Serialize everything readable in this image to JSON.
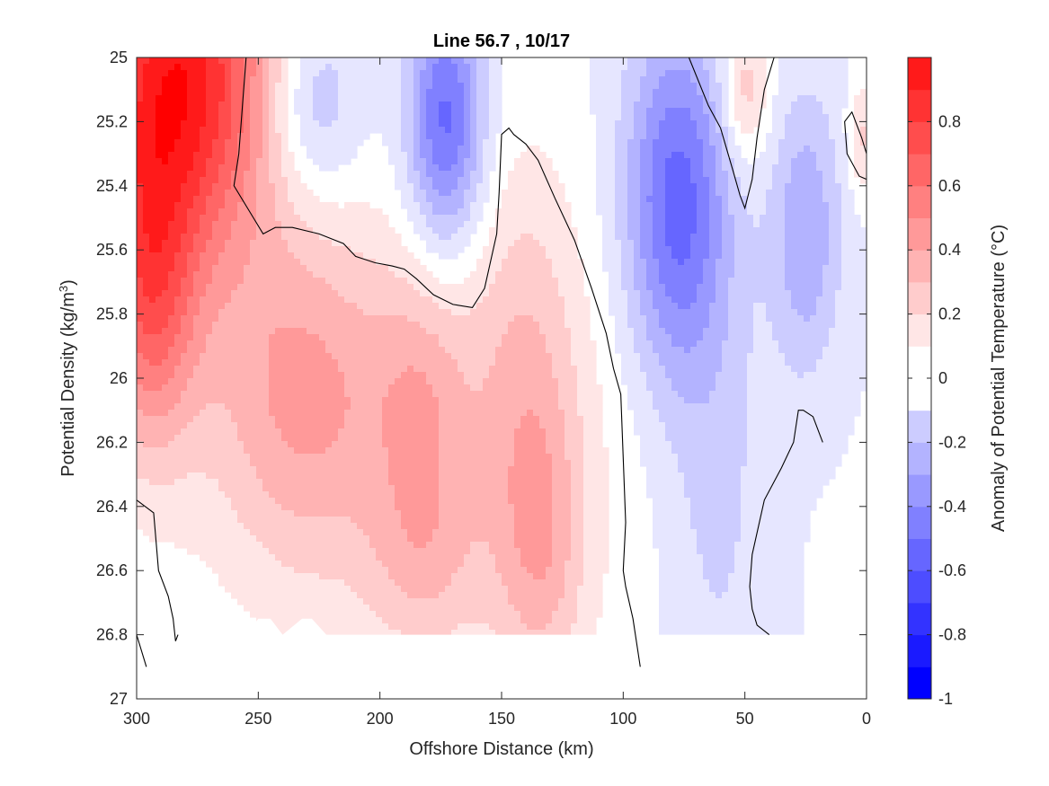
{
  "chart_data": {
    "type": "heatmap",
    "subtype": "filled-contour",
    "title": "Line 56.7 , 10/17",
    "xlabel": "Offshore Distance (km)",
    "ylabel_prefix": "Potential Density (kg/m",
    "ylabel_sup": "3",
    "ylabel_suffix": ")",
    "colorbar_label": "Anomaly of Potential Temperature (°C)",
    "xlim": [
      300,
      0
    ],
    "ylim": [
      25,
      27
    ],
    "x_reversed": true,
    "y_reversed": true,
    "xticks": [
      300,
      250,
      200,
      150,
      100,
      50,
      0
    ],
    "xtick_labels": [
      "300",
      "250",
      "200",
      "150",
      "100",
      "50",
      "0"
    ],
    "yticks": [
      25,
      25.2,
      25.4,
      25.6,
      25.8,
      26,
      26.2,
      26.4,
      26.6,
      26.8,
      27
    ],
    "ytick_labels": [
      "25",
      "25.2",
      "25.4",
      "25.6",
      "25.8",
      "26",
      "26.2",
      "26.4",
      "26.6",
      "26.8",
      "27"
    ],
    "clim": [
      -1,
      1
    ],
    "colorbar_ticks": [
      0.8,
      0.6,
      0.4,
      0.2,
      0,
      -0.2,
      -0.4,
      -0.6,
      -0.8,
      -1
    ],
    "colorbar_tick_labels": [
      "0.8",
      "0.6",
      "0.4",
      "0.2",
      "0",
      "-0.2",
      "-0.4",
      "-0.6",
      "-0.8",
      "-1"
    ],
    "levels": [
      -1,
      -0.9,
      -0.8,
      -0.7,
      -0.6,
      -0.5,
      -0.4,
      -0.3,
      -0.2,
      -0.1,
      0,
      0.1,
      0.2,
      0.3,
      0.4,
      0.5,
      0.6,
      0.7,
      0.8,
      0.9,
      1
    ],
    "level_colors": [
      "#0000ff",
      "#1a1aff",
      "#3333ff",
      "#4d4dff",
      "#6666ff",
      "#8080ff",
      "#9999ff",
      "#b3b3ff",
      "#ccccff",
      "#e6e6ff",
      "#ffffff",
      "#ffffff",
      "#ffe6e6",
      "#ffcccc",
      "#ffb3b3",
      "#ff9999",
      "#ff8080",
      "#ff6666",
      "#ff4d4d",
      "#ff3333",
      "#ff1a1a",
      "#ff0000"
    ],
    "grid": false,
    "anomalies": [
      {
        "x": 282,
        "y": 25.05,
        "amp": 0.95,
        "sx": 28,
        "sy": 0.42
      },
      {
        "x": 295,
        "y": 25.75,
        "amp": 0.55,
        "sx": 14,
        "sy": 0.35
      },
      {
        "x": 232,
        "y": 26.05,
        "amp": 0.35,
        "sx": 28,
        "sy": 0.38
      },
      {
        "x": 182,
        "y": 26.05,
        "amp": 0.22,
        "sx": 14,
        "sy": 0.28
      },
      {
        "x": 140,
        "y": 26.05,
        "amp": 0.24,
        "sx": 16,
        "sy": 0.5
      },
      {
        "x": 182,
        "y": 26.55,
        "amp": 0.2,
        "sx": 16,
        "sy": 0.22
      },
      {
        "x": 133,
        "y": 26.55,
        "amp": 0.2,
        "sx": 12,
        "sy": 0.3
      },
      {
        "x": 175,
        "y": 26.3,
        "amp": 0.12,
        "sx": 70,
        "sy": 0.65
      },
      {
        "x": 228,
        "y": 25.15,
        "amp": -0.28,
        "sx": 14,
        "sy": 0.22
      },
      {
        "x": 173,
        "y": 25.2,
        "amp": -0.55,
        "sx": 11,
        "sy": 0.28
      },
      {
        "x": 78,
        "y": 25.45,
        "amp": -0.55,
        "sx": 15,
        "sy": 0.38
      },
      {
        "x": 62,
        "y": 26.35,
        "amp": -0.15,
        "sx": 16,
        "sy": 0.55
      },
      {
        "x": 25,
        "y": 25.55,
        "amp": -0.3,
        "sx": 10,
        "sy": 0.3
      },
      {
        "x": 50,
        "y": 25.1,
        "amp": 0.28,
        "sx": 7,
        "sy": 0.16
      },
      {
        "x": 2,
        "y": 25.25,
        "amp": 0.22,
        "sx": 4,
        "sy": 0.12
      }
    ],
    "blank_regions": [
      {
        "x": [
          300,
          300,
          285,
          280,
          270,
          260,
          255,
          250,
          245,
          240,
          232,
          228,
          222,
          215,
          205,
          200,
          195,
          190,
          185,
          180,
          175,
          165,
          155,
          150,
          145,
          140,
          130,
          125,
          120,
          110,
          100,
          95,
          93,
          0,
          0
        ],
        "y": [
          27,
          26.95,
          26.8,
          26.75,
          26.75,
          26.8,
          26.8,
          26.75,
          26.75,
          26.8,
          26.75,
          26.75,
          26.8,
          26.8,
          26.8,
          26.8,
          26.8,
          26.8,
          26.8,
          26.8,
          26.8,
          26.8,
          26.8,
          26.8,
          26.8,
          26.8,
          26.8,
          26.8,
          26.8,
          26.8,
          26.8,
          26.8,
          26.8,
          26.8,
          27
        ]
      },
      {
        "x": [
          300,
          300,
          252,
          252,
          300
        ],
        "y": [
          26.85,
          27,
          27,
          26.9,
          26.85
        ]
      }
    ],
    "zero_contours": [
      {
        "x": [
          255,
          258,
          260,
          252,
          248,
          243,
          236,
          225,
          215,
          210,
          202,
          195,
          190,
          185,
          178,
          170,
          162,
          157,
          152,
          151,
          150,
          147,
          145,
          140,
          135,
          128,
          120,
          113,
          107,
          104,
          101,
          99,
          100,
          99,
          96,
          93
        ],
        "y": [
          25,
          25.3,
          25.4,
          25.5,
          25.55,
          25.53,
          25.53,
          25.55,
          25.58,
          25.62,
          25.64,
          25.65,
          25.66,
          25.69,
          25.74,
          25.77,
          25.78,
          25.72,
          25.55,
          25.42,
          25.24,
          25.22,
          25.24,
          25.27,
          25.32,
          25.44,
          25.57,
          25.72,
          25.86,
          25.97,
          26.05,
          26.45,
          26.6,
          26.65,
          26.75,
          26.9
        ]
      },
      {
        "x": [
          73,
          65,
          60,
          55,
          52,
          50,
          47,
          45,
          42,
          38
        ],
        "y": [
          25,
          25.15,
          25.22,
          25.35,
          25.43,
          25.47,
          25.38,
          25.25,
          25.1,
          25
        ]
      },
      {
        "x": [
          0,
          3,
          8,
          9,
          6,
          2,
          0
        ],
        "y": [
          25.38,
          25.37,
          25.3,
          25.2,
          25.17,
          25.25,
          25.3
        ]
      },
      {
        "x": [
          18,
          22,
          26,
          28,
          30,
          35,
          42,
          47,
          48,
          47,
          45,
          40
        ],
        "y": [
          26.2,
          26.12,
          26.1,
          26.1,
          26.2,
          26.28,
          26.38,
          26.55,
          26.65,
          26.72,
          26.77,
          26.8
        ]
      },
      {
        "x": [
          300,
          293,
          291,
          287,
          285,
          284,
          283
        ],
        "y": [
          26.38,
          26.42,
          26.6,
          26.68,
          26.75,
          26.82,
          26.8
        ]
      },
      {
        "x": [
          300,
          296
        ],
        "y": [
          26.8,
          26.9
        ]
      }
    ]
  }
}
